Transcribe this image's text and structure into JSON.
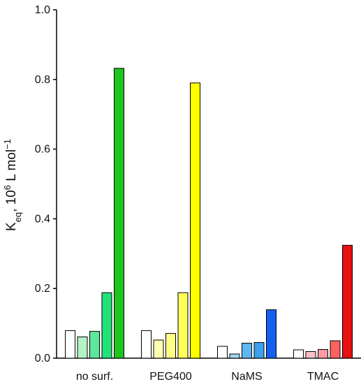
{
  "chart_data": {
    "type": "bar",
    "title": "",
    "xlabel": "",
    "ylabel": {
      "prefix": "K",
      "subscript": "eq",
      "mid": ", 10",
      "superscript": "6",
      "unit": " L mol",
      "unit_superscript": "−1"
    },
    "ylim": [
      0,
      1.0
    ],
    "yticks": [
      "0.0",
      "0.2",
      "0.4",
      "0.6",
      "0.8",
      "1.0"
    ],
    "grid": false,
    "legend": "none",
    "groups": [
      {
        "category": "no surf.",
        "values": [
          0.079,
          0.061,
          0.077,
          0.188,
          0.832
        ],
        "colors": [
          "#ffffff",
          "#b3f2c4",
          "#5ee69a",
          "#22e27a",
          "#1fc41f"
        ]
      },
      {
        "category": "PEG400",
        "values": [
          0.079,
          0.052,
          0.071,
          0.188,
          0.79
        ],
        "colors": [
          "#ffffff",
          "#ffffb0",
          "#ffff88",
          "#ffff5a",
          "#ffff00"
        ]
      },
      {
        "category": "NaMS",
        "values": [
          0.034,
          0.012,
          0.043,
          0.045,
          0.139
        ],
        "colors": [
          "#ffffff",
          "#9ed8f2",
          "#5db8f2",
          "#3ba0f0",
          "#1560f0"
        ]
      },
      {
        "category": "TMAC",
        "values": [
          0.024,
          0.019,
          0.025,
          0.05,
          0.324
        ],
        "colors": [
          "#ffffff",
          "#ffc0c8",
          "#ff9aa4",
          "#ff6060",
          "#e81010"
        ]
      }
    ]
  }
}
